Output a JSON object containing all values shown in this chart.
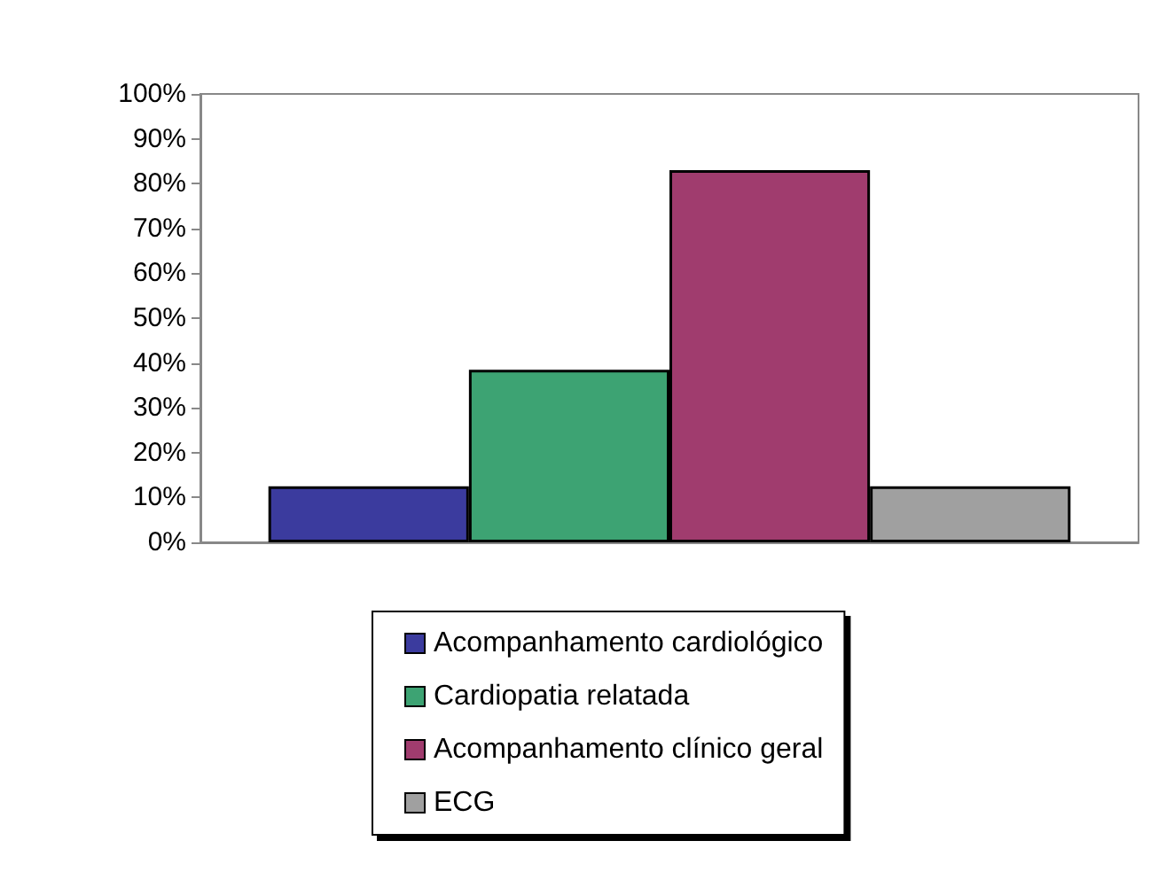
{
  "chart_data": {
    "type": "bar",
    "categories": [
      null
    ],
    "series": [
      {
        "name": "Acompanhamento cardiológico",
        "color": "#3b3b9e",
        "values": [
          12.5
        ]
      },
      {
        "name": "Cardiopatia relatada",
        "color": "#3da373",
        "values": [
          38.5
        ]
      },
      {
        "name": "Acompanhamento clínico geral",
        "color": "#a03c6e",
        "values": [
          83
        ]
      },
      {
        "name": "ECG",
        "color": "#a0a0a0",
        "values": [
          12.5
        ]
      }
    ],
    "ylim": [
      0,
      100
    ],
    "yticks": [
      {
        "value": 0,
        "label": "0%"
      },
      {
        "value": 10,
        "label": "10%"
      },
      {
        "value": 20,
        "label": "20%"
      },
      {
        "value": 30,
        "label": "30%"
      },
      {
        "value": 40,
        "label": "40%"
      },
      {
        "value": 50,
        "label": "50%"
      },
      {
        "value": 60,
        "label": "60%"
      },
      {
        "value": 70,
        "label": "70%"
      },
      {
        "value": 80,
        "label": "80%"
      },
      {
        "value": 90,
        "label": "90%"
      },
      {
        "value": 100,
        "label": "100%"
      }
    ],
    "grid": false,
    "legend": "bottom"
  }
}
